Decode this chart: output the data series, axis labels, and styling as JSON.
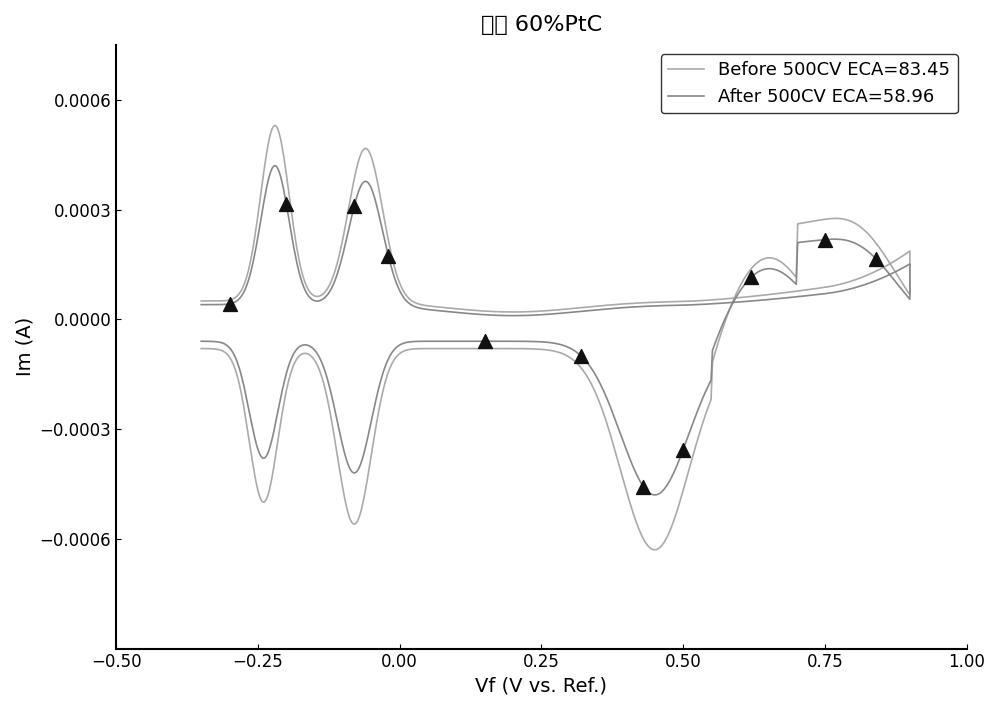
{
  "title": "商用 60%PtC",
  "xlabel": "Vf (V vs. Ref.)",
  "ylabel": "Im (A)",
  "xlim": [
    -0.5,
    1.0
  ],
  "ylim": [
    -0.0009,
    0.00075
  ],
  "legend_labels": [
    "Before 500CV ECA=83.45",
    "After 500CV ECA=58.96"
  ],
  "line_color_before": "#aaaaaa",
  "line_color_after": "#888888",
  "marker_color": "#111111",
  "background_color": "#ffffff",
  "title_fontsize": 16,
  "axis_fontsize": 14,
  "tick_fontsize": 12,
  "legend_fontsize": 13
}
